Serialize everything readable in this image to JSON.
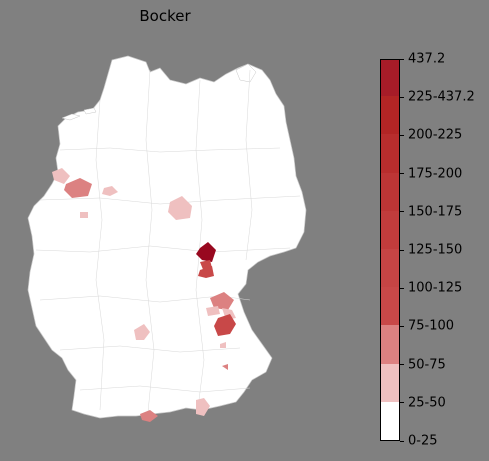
{
  "title": "Bocker",
  "legend": {
    "bands": [
      {
        "label": "0-25",
        "color": "#ffffff"
      },
      {
        "label": "25-50",
        "color": "#efc0c0"
      },
      {
        "label": "50-75",
        "color": "#dc8181"
      },
      {
        "label": "75-100",
        "color": "#c84848"
      },
      {
        "label": "100-125",
        "color": "#c54444"
      },
      {
        "label": "125-150",
        "color": "#c13c3c"
      },
      {
        "label": "150-175",
        "color": "#bd3535"
      },
      {
        "label": "175-200",
        "color": "#b82d2d"
      },
      {
        "label": "200-225",
        "color": "#b22525"
      },
      {
        "label": "225-437.2",
        "color": "#a61c28"
      },
      {
        "label": "437.2",
        "color": "#98081f"
      }
    ]
  },
  "colors": {
    "background": "#808080",
    "land": "#ffffff",
    "border": "#c8c8c8"
  }
}
